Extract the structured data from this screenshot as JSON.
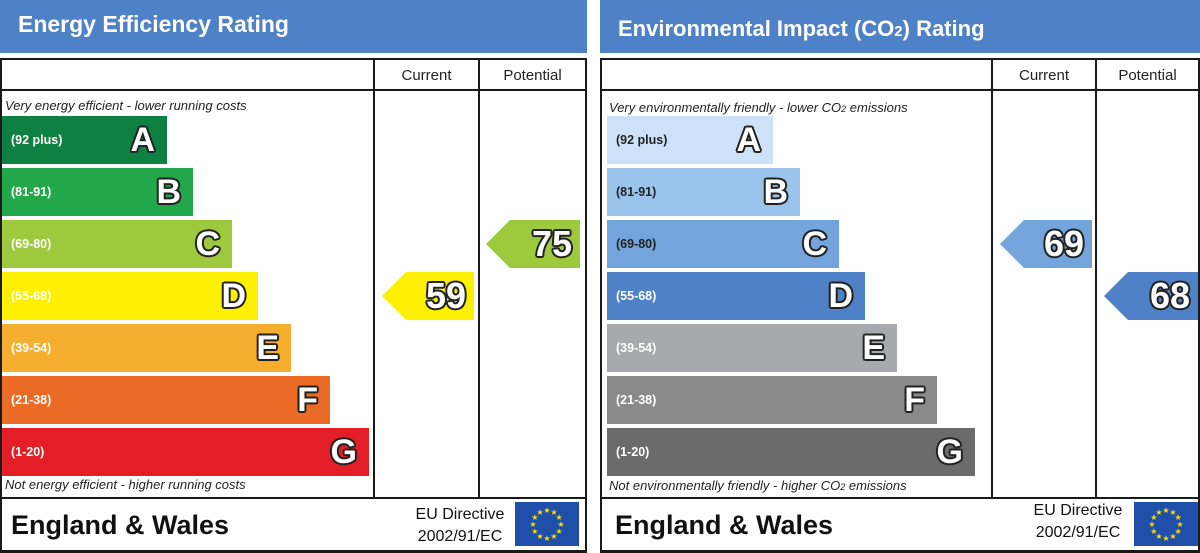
{
  "energy": {
    "title": "Energy Efficiency Rating",
    "col_current": "Current",
    "col_potential": "Potential",
    "top_note": "Very energy efficient - lower running costs",
    "bottom_note": "Not energy efficient - higher running costs",
    "bands": [
      {
        "range": "(92 plus)",
        "letter": "A",
        "color": "#0e8041"
      },
      {
        "range": "(81-91)",
        "letter": "B",
        "color": "#22a84a"
      },
      {
        "range": "(69-80)",
        "letter": "C",
        "color": "#9cca3c"
      },
      {
        "range": "(55-68)",
        "letter": "D",
        "color": "#ffef00"
      },
      {
        "range": "(39-54)",
        "letter": "E",
        "color": "#f6ae2e"
      },
      {
        "range": "(21-38)",
        "letter": "F",
        "color": "#ea6a26"
      },
      {
        "range": "(1-20)",
        "letter": "G",
        "color": "#e31e26"
      }
    ],
    "current": {
      "value": "59",
      "band": "D",
      "color": "#ffef00"
    },
    "potential": {
      "value": "75",
      "band": "C",
      "color": "#9cca3c"
    },
    "region": "England & Wales",
    "directive_line1": "EU Directive",
    "directive_line2": "2002/91/EC"
  },
  "environment": {
    "title": "Environmental Impact (CO",
    "title_sub": "2",
    "title_end": ") Rating",
    "col_current": "Current",
    "col_potential": "Potential",
    "top_note": "Very environmentally friendly - lower CO",
    "top_note_sub": "2",
    "top_note_end": " emissions",
    "bottom_note": "Not environmentally friendly - higher CO",
    "bottom_note_sub": "2",
    "bottom_note_end": " emissions",
    "bands": [
      {
        "range": "(92 plus)",
        "letter": "A",
        "color": "#cde2f6"
      },
      {
        "range": "(81-91)",
        "letter": "B",
        "color": "#9ac4ec"
      },
      {
        "range": "(69-80)",
        "letter": "C",
        "color": "#73a5dc"
      },
      {
        "range": "(55-68)",
        "letter": "D",
        "color": "#4f81c7"
      },
      {
        "range": "(39-54)",
        "letter": "E",
        "color": "#a7a9ac"
      },
      {
        "range": "(21-38)",
        "letter": "F",
        "color": "#8a8a8a"
      },
      {
        "range": "(1-20)",
        "letter": "G",
        "color": "#6b6b6b"
      }
    ],
    "current": {
      "value": "69",
      "band": "C",
      "color": "#73a5dc"
    },
    "potential": {
      "value": "68",
      "band": "D",
      "color": "#4f81c7"
    },
    "region": "England & Wales",
    "directive_line1": "EU Directive",
    "directive_line2": "2002/91/EC"
  },
  "flag_color": "#1f4fa8",
  "star_color": "#ffdd00"
}
